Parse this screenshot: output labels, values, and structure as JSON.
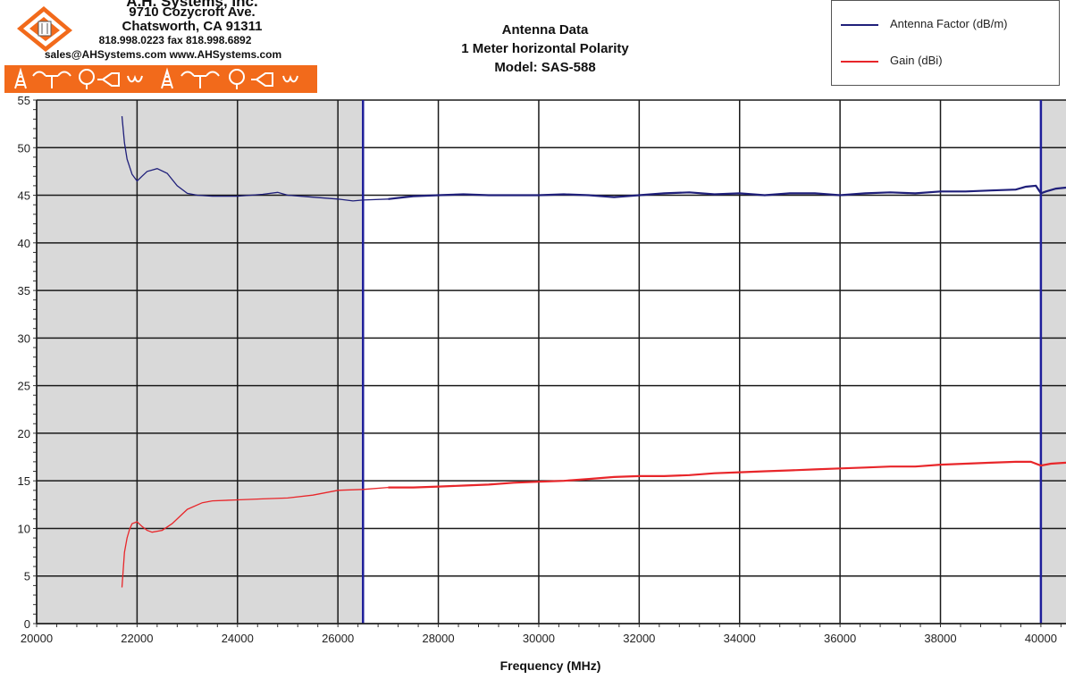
{
  "header": {
    "company_name": "A.H. Systems, Inc.",
    "address": "9710 Cozycroft Ave.",
    "city": "Chatsworth, CA 91311",
    "phone": "818.998.0223 fax 818.998.6892",
    "web": "sales@AHSystems.com www.AHSystems.com",
    "brand_orange": "#f26a1b",
    "icons": [
      "tower-icon",
      "dipole-icon",
      "loop-icon",
      "horn-icon",
      "biconical-icon",
      "tower-icon",
      "dipole-icon",
      "loop-icon",
      "horn-icon",
      "biconical-icon"
    ]
  },
  "title": {
    "line1": "Antenna Data",
    "line2": "1 Meter horizontal Polarity",
    "line3": "Model: SAS-588"
  },
  "legend": {
    "placement": "top-right",
    "items": [
      {
        "label": "Antenna Factor (dB/m)",
        "color": "#1f1f7a"
      },
      {
        "label": "Gain (dBi)",
        "color": "#e8262a"
      }
    ]
  },
  "chart_data": {
    "type": "line",
    "xlabel": "Frequency (MHz)",
    "ylabel": "",
    "xlim": [
      20000,
      40500
    ],
    "ylim": [
      0,
      55
    ],
    "x_ticks": [
      20000,
      22000,
      24000,
      26000,
      28000,
      30000,
      32000,
      34000,
      36000,
      38000,
      40000
    ],
    "y_ticks": [
      0,
      5,
      10,
      15,
      20,
      25,
      30,
      35,
      40,
      45,
      50,
      55
    ],
    "grid": true,
    "shaded_regions": [
      {
        "from": 20000,
        "to": 26500,
        "color": "#d9d9d9"
      },
      {
        "from": 40000,
        "to": 40500,
        "color": "#d9d9d9"
      }
    ],
    "band_markers": [
      26500,
      40000
    ],
    "series": [
      {
        "name": "Antenna Factor (dB/m)",
        "color": "#1f1f7a",
        "x": [
          21700,
          21750,
          21800,
          21900,
          22000,
          22100,
          22200,
          22400,
          22600,
          22800,
          23000,
          23200,
          23500,
          24000,
          24500,
          24800,
          25000,
          25500,
          26000,
          26300,
          26500,
          27000,
          27500,
          28000,
          28500,
          29000,
          29500,
          30000,
          30500,
          31000,
          31500,
          32000,
          32500,
          33000,
          33500,
          34000,
          34500,
          35000,
          35500,
          36000,
          36500,
          37000,
          37500,
          38000,
          38500,
          39000,
          39500,
          39700,
          39900,
          40000,
          40100,
          40300,
          40500
        ],
        "values": [
          53.3,
          50.5,
          48.8,
          47.2,
          46.5,
          47.0,
          47.5,
          47.8,
          47.3,
          46.0,
          45.2,
          45.0,
          44.9,
          44.9,
          45.1,
          45.3,
          45.0,
          44.8,
          44.6,
          44.4,
          44.5,
          44.6,
          44.9,
          45.0,
          45.1,
          45.0,
          45.0,
          45.0,
          45.1,
          45.0,
          44.8,
          45.0,
          45.2,
          45.3,
          45.1,
          45.2,
          45.0,
          45.2,
          45.2,
          45.0,
          45.2,
          45.3,
          45.2,
          45.4,
          45.4,
          45.5,
          45.6,
          45.9,
          46.0,
          45.2,
          45.4,
          45.7,
          45.8
        ]
      },
      {
        "name": "Gain (dBi)",
        "color": "#e8262a",
        "x": [
          21700,
          21750,
          21800,
          21850,
          21900,
          22000,
          22100,
          22200,
          22300,
          22500,
          22700,
          23000,
          23300,
          23500,
          24000,
          24500,
          25000,
          25500,
          26000,
          26500,
          27000,
          27500,
          28000,
          28500,
          29000,
          29500,
          30000,
          30500,
          31000,
          31500,
          32000,
          32500,
          33000,
          33500,
          34000,
          34500,
          35000,
          35500,
          36000,
          36500,
          37000,
          37500,
          38000,
          38500,
          39000,
          39500,
          39800,
          40000,
          40200,
          40500
        ],
        "values": [
          3.8,
          7.5,
          9.0,
          9.9,
          10.5,
          10.7,
          10.2,
          9.8,
          9.6,
          9.8,
          10.5,
          12.0,
          12.7,
          12.9,
          13.0,
          13.1,
          13.2,
          13.5,
          14.0,
          14.1,
          14.3,
          14.3,
          14.4,
          14.5,
          14.6,
          14.8,
          14.9,
          15.0,
          15.2,
          15.4,
          15.5,
          15.5,
          15.6,
          15.8,
          15.9,
          16.0,
          16.1,
          16.2,
          16.3,
          16.4,
          16.5,
          16.5,
          16.7,
          16.8,
          16.9,
          17.0,
          17.0,
          16.6,
          16.8,
          16.9
        ]
      }
    ]
  }
}
